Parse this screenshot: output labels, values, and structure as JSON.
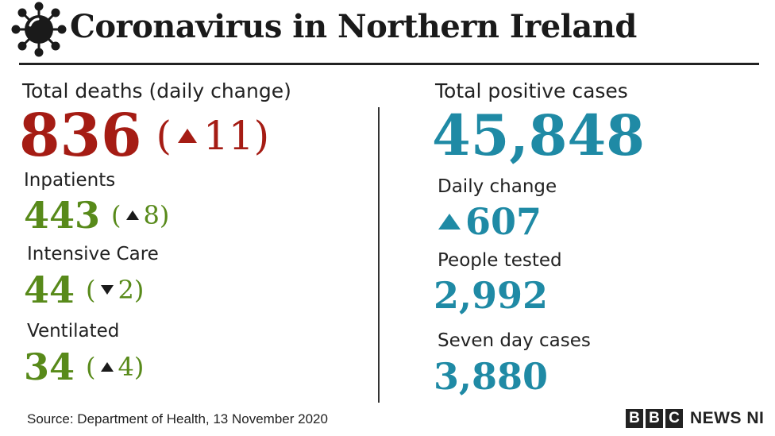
{
  "header": {
    "title": "Coronavirus in Northern Ireland",
    "icon": "virus-icon"
  },
  "deaths": {
    "label": "Total deaths (daily change)",
    "value": "836",
    "change": "11",
    "direction": "up",
    "color": "#a51c14"
  },
  "inpatients": {
    "label": "Inpatients",
    "value": "443",
    "change": "8",
    "direction": "up"
  },
  "intensive_care": {
    "label": "Intensive Care",
    "value": "44",
    "change": "2",
    "direction": "down"
  },
  "ventilated": {
    "label": "Ventilated",
    "value": "34",
    "change": "4",
    "direction": "up"
  },
  "cases": {
    "label": "Total positive cases",
    "value": "45,848",
    "color": "#1f8aa5"
  },
  "daily_change": {
    "label": "Daily change",
    "value": "607",
    "direction": "up"
  },
  "people_tested": {
    "label": "People tested",
    "value": "2,992"
  },
  "seven_day": {
    "label": "Seven day cases",
    "value": "3,880"
  },
  "footer": {
    "source": "Source: Department of Health, 13 November 2020",
    "logo_letters": [
      "B",
      "B",
      "C"
    ],
    "logo_text": "NEWS NI"
  },
  "colors": {
    "green": "#588a1a",
    "red": "#a51c14",
    "blue": "#1f8aa5"
  }
}
